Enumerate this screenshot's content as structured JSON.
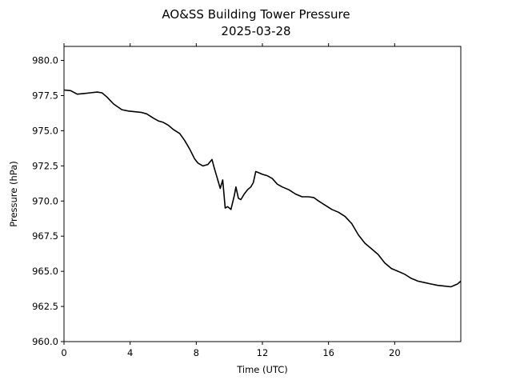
{
  "chart_data": {
    "type": "line",
    "title": "AO&SS Building Tower Pressure",
    "subtitle": "2025-03-28",
    "xlabel": "Time (UTC)",
    "ylabel": "Pressure (hPa)",
    "xlim": [
      0,
      24
    ],
    "ylim": [
      960.0,
      981.0
    ],
    "xticks": [
      0,
      4,
      8,
      12,
      16,
      20
    ],
    "yticks": [
      960.0,
      962.5,
      965.0,
      967.5,
      970.0,
      972.5,
      975.0,
      977.5,
      980.0
    ],
    "xtick_labels": [
      "0",
      "4",
      "8",
      "12",
      "16",
      "20"
    ],
    "ytick_labels": [
      "960.0",
      "962.5",
      "965.0",
      "967.5",
      "970.0",
      "972.5",
      "975.0",
      "977.5",
      "980.0"
    ],
    "grid": false,
    "line_color": "#000000",
    "series": [
      {
        "x": [
          0,
          0.4,
          0.8,
          1.2,
          1.6,
          2.0,
          2.3,
          2.6,
          3.0,
          3.5,
          3.9,
          4.3,
          4.7,
          5.0,
          5.4,
          5.7,
          6.0,
          6.3,
          6.6,
          7.0,
          7.3,
          7.6,
          7.9,
          8.1,
          8.4,
          8.7,
          8.95,
          9.1,
          9.3,
          9.45,
          9.6,
          9.75,
          9.9,
          10.1,
          10.3,
          10.4,
          10.55,
          10.7,
          10.9,
          11.1,
          11.3,
          11.45,
          11.6,
          11.8,
          12.0,
          12.3,
          12.6,
          12.9,
          13.2,
          13.6,
          14.0,
          14.4,
          14.8,
          15.1,
          15.4,
          15.8,
          16.2,
          16.6,
          17.0,
          17.4,
          17.8,
          18.2,
          18.6,
          19.0,
          19.4,
          19.8,
          20.2,
          20.6,
          21.0,
          21.4,
          21.8,
          22.2,
          22.6,
          23.0,
          23.4,
          23.8,
          24.0
        ],
        "y": [
          977.9,
          977.85,
          977.6,
          977.65,
          977.7,
          977.75,
          977.7,
          977.4,
          976.9,
          976.5,
          976.4,
          976.35,
          976.3,
          976.2,
          975.9,
          975.7,
          975.6,
          975.4,
          975.1,
          974.8,
          974.3,
          973.7,
          973.0,
          972.7,
          972.5,
          972.6,
          972.95,
          972.3,
          971.5,
          970.9,
          971.5,
          969.5,
          969.6,
          969.4,
          970.4,
          971.0,
          970.2,
          970.1,
          970.5,
          970.8,
          971.0,
          971.3,
          972.1,
          972.0,
          971.9,
          971.8,
          971.6,
          971.2,
          971.0,
          970.8,
          970.5,
          970.3,
          970.3,
          970.25,
          970.0,
          969.7,
          969.4,
          969.2,
          968.9,
          968.4,
          967.6,
          967.0,
          966.6,
          966.2,
          965.6,
          965.2,
          965.0,
          964.8,
          964.5,
          964.3,
          964.2,
          964.1,
          964.0,
          963.95,
          963.9,
          964.1,
          964.3
        ]
      }
    ]
  }
}
